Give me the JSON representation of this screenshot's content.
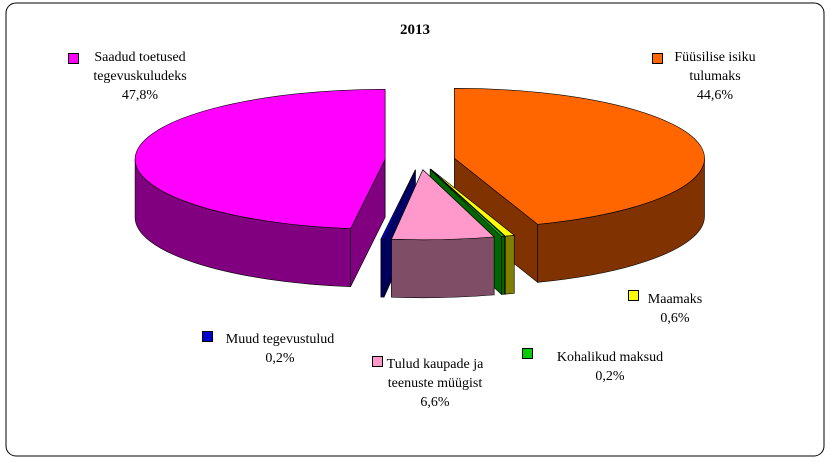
{
  "chart_data": {
    "type": "pie3d",
    "title": "2013",
    "categories": [
      "Füüsilise isiku tulumaks",
      "Maamaks",
      "Kohalikud maksud",
      "Tulud kaupade ja teenuste müügist",
      "Muud tegevustulud",
      "Saadud toetused tegevuskuludeks"
    ],
    "values": [
      44.6,
      0.6,
      0.2,
      6.6,
      0.2,
      47.8
    ],
    "value_labels": [
      "44,6%",
      "0,6%",
      "0,2%",
      "6,6%",
      "0,2%",
      "47,8%"
    ],
    "colors": [
      "#ff6600",
      "#ffff00",
      "#00cc00",
      "#ff99cc",
      "#0000cc",
      "#ff00ff"
    ]
  }
}
